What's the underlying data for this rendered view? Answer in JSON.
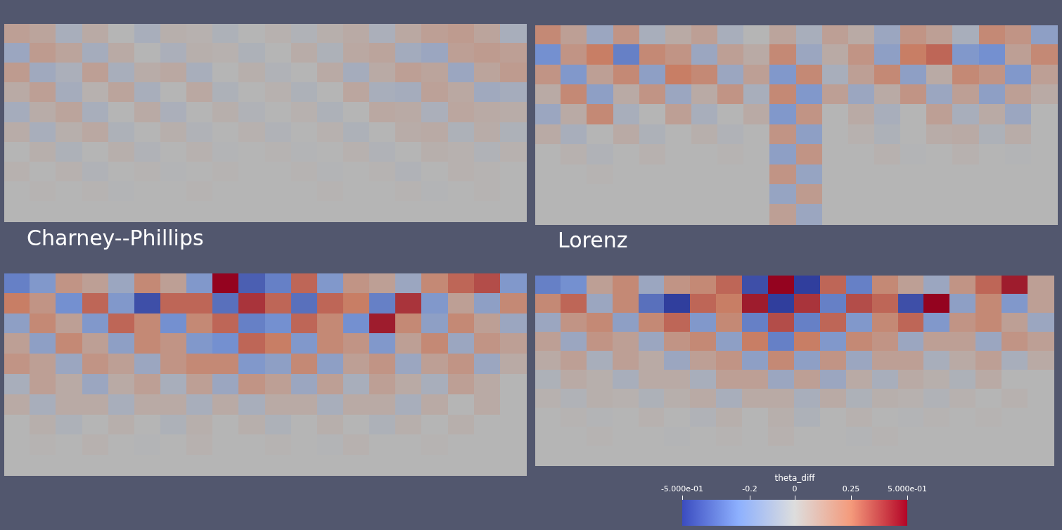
{
  "chart_data": [
    {
      "type": "heatmap",
      "tick_labels": false,
      "grid": false,
      "cells": [
        [
          0.1,
          0.08,
          -0.05,
          0.05,
          0.0,
          -0.05,
          0.03,
          0.02,
          -0.03,
          0.0,
          0.02,
          -0.02,
          0.03,
          0.05,
          -0.04,
          0.06,
          0.1,
          0.12,
          0.08,
          -0.05
        ],
        [
          -0.1,
          0.12,
          0.08,
          -0.06,
          0.05,
          0.0,
          -0.04,
          0.03,
          0.02,
          -0.03,
          0.0,
          0.04,
          -0.03,
          0.06,
          0.08,
          -0.07,
          -0.1,
          0.1,
          0.12,
          0.1
        ],
        [
          0.12,
          -0.08,
          -0.04,
          0.1,
          -0.05,
          0.04,
          0.06,
          -0.05,
          0.0,
          0.03,
          -0.02,
          0.0,
          0.05,
          -0.06,
          0.05,
          0.1,
          0.08,
          -0.1,
          0.08,
          0.12
        ],
        [
          0.05,
          0.1,
          -0.06,
          0.02,
          0.08,
          -0.05,
          0.0,
          0.06,
          -0.03,
          0.0,
          0.02,
          -0.03,
          0.0,
          0.07,
          -0.05,
          -0.06,
          0.09,
          0.06,
          -0.08,
          -0.06
        ],
        [
          -0.06,
          0.04,
          0.08,
          -0.05,
          0.0,
          0.05,
          -0.04,
          0.0,
          0.03,
          -0.02,
          0.0,
          0.02,
          -0.03,
          0.0,
          0.06,
          0.05,
          -0.04,
          0.07,
          0.05,
          0.04
        ],
        [
          0.04,
          -0.05,
          0.03,
          0.06,
          -0.03,
          0.0,
          0.03,
          -0.02,
          0.0,
          0.02,
          -0.02,
          0.0,
          0.02,
          -0.03,
          0.0,
          0.04,
          0.05,
          -0.03,
          0.04,
          -0.03
        ],
        [
          0.0,
          0.03,
          -0.03,
          0.0,
          0.03,
          -0.02,
          0.0,
          0.02,
          -0.01,
          0.0,
          0.01,
          -0.01,
          0.0,
          0.02,
          -0.02,
          0.0,
          0.03,
          0.02,
          -0.02,
          0.02
        ],
        [
          0.02,
          0.0,
          0.02,
          -0.02,
          0.0,
          0.01,
          -0.01,
          0.0,
          0.01,
          0.0,
          0.0,
          0.01,
          -0.01,
          0.0,
          0.01,
          -0.02,
          0.0,
          0.02,
          0.01,
          0.0
        ],
        [
          0.0,
          0.01,
          0.0,
          0.01,
          -0.01,
          0.0,
          0.0,
          0.01,
          0.0,
          0.0,
          0.0,
          0.0,
          0.01,
          0.0,
          0.0,
          0.01,
          -0.01,
          0.0,
          0.01,
          0.0
        ],
        [
          0,
          0,
          0,
          0,
          0,
          0,
          0,
          0,
          0,
          0,
          0,
          0,
          0,
          0,
          0,
          0,
          0,
          0,
          0,
          0
        ]
      ]
    },
    {
      "type": "heatmap",
      "tick_labels": false,
      "grid": false,
      "cells": [
        [
          0.2,
          0.1,
          -0.1,
          0.15,
          -0.05,
          0.05,
          0.1,
          -0.05,
          0.0,
          0.08,
          -0.05,
          0.1,
          0.05,
          -0.1,
          0.15,
          0.1,
          -0.05,
          0.2,
          0.15,
          -0.15
        ],
        [
          -0.25,
          0.15,
          0.25,
          -0.3,
          0.2,
          0.15,
          -0.1,
          0.1,
          0.05,
          0.2,
          -0.1,
          0.05,
          0.15,
          -0.15,
          0.25,
          0.3,
          -0.2,
          -0.25,
          0.1,
          0.2
        ],
        [
          0.15,
          -0.2,
          0.1,
          0.2,
          -0.15,
          0.25,
          0.2,
          -0.1,
          0.1,
          -0.2,
          0.2,
          -0.05,
          0.1,
          0.2,
          -0.15,
          0.05,
          0.2,
          0.15,
          -0.2,
          0.1
        ],
        [
          0.05,
          0.2,
          -0.15,
          0.05,
          0.15,
          -0.1,
          0.05,
          0.15,
          -0.05,
          0.2,
          -0.2,
          0.1,
          -0.1,
          0.05,
          0.15,
          -0.1,
          0.1,
          -0.15,
          0.1,
          0.05
        ],
        [
          -0.1,
          0.05,
          0.2,
          -0.05,
          0.0,
          0.1,
          -0.05,
          0.0,
          0.05,
          -0.2,
          0.15,
          0.0,
          0.05,
          -0.05,
          0.0,
          0.1,
          -0.05,
          0.05,
          -0.1,
          0.0
        ],
        [
          0.05,
          -0.05,
          0.0,
          0.05,
          -0.03,
          0.0,
          0.03,
          -0.02,
          0.0,
          0.15,
          -0.15,
          0.0,
          0.02,
          -0.03,
          0.0,
          0.04,
          0.05,
          -0.03,
          0.04,
          0.0
        ],
        [
          0.0,
          0.02,
          -0.02,
          0.0,
          0.02,
          0.0,
          0.0,
          0.01,
          0.0,
          -0.15,
          0.15,
          0.0,
          0.0,
          0.02,
          -0.01,
          0.0,
          0.02,
          0.0,
          -0.01,
          0.0
        ],
        [
          0,
          0,
          0.01,
          0,
          0,
          0,
          0,
          0,
          0,
          0.15,
          -0.12,
          0,
          0,
          0,
          0,
          0,
          0,
          0,
          0,
          0
        ],
        [
          0,
          0,
          0,
          0,
          0,
          0,
          0,
          0,
          0,
          -0.12,
          0.12,
          0,
          0,
          0,
          0,
          0,
          0,
          0,
          0,
          0
        ],
        [
          0,
          0,
          0,
          0,
          0,
          0,
          0,
          0,
          0,
          0.1,
          -0.1,
          0,
          0,
          0,
          0,
          0,
          0,
          0,
          0,
          0
        ]
      ]
    },
    {
      "type": "heatmap",
      "title": "Charney--Phillips",
      "tick_labels": false,
      "grid": false,
      "cells": [
        [
          -0.3,
          -0.2,
          0.15,
          0.1,
          -0.1,
          0.2,
          0.1,
          -0.2,
          0.5,
          -0.4,
          -0.3,
          0.3,
          -0.2,
          0.15,
          0.1,
          -0.1,
          0.2,
          0.3,
          0.35,
          -0.2
        ],
        [
          0.25,
          0.15,
          -0.25,
          0.3,
          -0.2,
          -0.45,
          0.3,
          0.3,
          -0.35,
          0.4,
          0.3,
          -0.35,
          0.3,
          0.25,
          -0.3,
          0.4,
          -0.2,
          0.1,
          -0.15,
          0.2
        ],
        [
          -0.15,
          0.2,
          0.1,
          -0.2,
          0.3,
          0.2,
          -0.25,
          0.2,
          0.3,
          -0.3,
          -0.25,
          0.3,
          0.2,
          -0.25,
          0.45,
          0.2,
          -0.15,
          0.2,
          0.1,
          -0.1
        ],
        [
          0.1,
          -0.15,
          0.2,
          0.1,
          -0.15,
          0.2,
          0.15,
          -0.2,
          -0.25,
          0.3,
          0.25,
          -0.2,
          0.2,
          0.15,
          -0.2,
          0.1,
          0.2,
          -0.1,
          0.15,
          0.1
        ],
        [
          0.15,
          0.1,
          -0.1,
          0.15,
          0.1,
          -0.1,
          0.15,
          0.2,
          0.2,
          -0.2,
          -0.15,
          0.2,
          -0.15,
          0.1,
          0.15,
          -0.1,
          0.1,
          0.15,
          -0.1,
          0.05
        ],
        [
          -0.05,
          0.1,
          0.05,
          -0.1,
          0.05,
          0.1,
          -0.05,
          0.1,
          -0.1,
          0.15,
          0.1,
          -0.1,
          0.1,
          -0.05,
          0.1,
          0.05,
          -0.05,
          0.1,
          0.05,
          0.0
        ],
        [
          0.05,
          -0.05,
          0.05,
          0.05,
          -0.05,
          0.05,
          0.05,
          -0.05,
          0.05,
          -0.05,
          0.05,
          0.05,
          -0.05,
          0.05,
          0.05,
          -0.05,
          0.05,
          0.0,
          0.05,
          0.0
        ],
        [
          0.0,
          0.03,
          -0.03,
          0.0,
          0.03,
          0.0,
          -0.03,
          0.03,
          0.0,
          0.03,
          -0.03,
          0.0,
          0.03,
          0.0,
          -0.03,
          0.03,
          0.0,
          0.03,
          0.0,
          0.0
        ],
        [
          0,
          0.01,
          0,
          0.02,
          0,
          -0.01,
          0,
          0.02,
          0,
          0,
          0.01,
          0,
          -0.01,
          0.02,
          0,
          0,
          0.01,
          0,
          0,
          0
        ],
        [
          0,
          0,
          0,
          0,
          0,
          0,
          0,
          0,
          0,
          0,
          0,
          0,
          0,
          0,
          0,
          0,
          0,
          0,
          0,
          0
        ]
      ]
    },
    {
      "type": "heatmap",
      "title": "Lorenz",
      "tick_labels": false,
      "grid": false,
      "cells": [
        [
          -0.3,
          -0.25,
          0.1,
          0.2,
          -0.1,
          0.15,
          0.2,
          0.3,
          -0.45,
          0.5,
          -0.5,
          0.3,
          -0.3,
          0.2,
          0.1,
          -0.1,
          0.15,
          0.3,
          0.45,
          0.1
        ],
        [
          0.2,
          0.3,
          -0.1,
          0.2,
          -0.35,
          -0.5,
          0.3,
          0.25,
          0.45,
          -0.5,
          0.4,
          -0.3,
          0.35,
          0.3,
          -0.45,
          0.5,
          -0.15,
          0.2,
          -0.2,
          0.1
        ],
        [
          -0.1,
          0.15,
          0.2,
          -0.15,
          0.2,
          0.3,
          -0.2,
          0.2,
          -0.3,
          0.35,
          -0.3,
          0.3,
          -0.2,
          0.2,
          0.3,
          -0.2,
          0.15,
          0.2,
          0.1,
          -0.1
        ],
        [
          0.1,
          -0.1,
          0.15,
          0.1,
          -0.1,
          0.15,
          0.2,
          -0.15,
          0.25,
          -0.3,
          0.25,
          -0.2,
          0.2,
          0.15,
          -0.1,
          0.1,
          0.1,
          -0.1,
          0.15,
          0.1
        ],
        [
          0.05,
          0.1,
          -0.05,
          0.1,
          0.05,
          -0.1,
          0.1,
          0.15,
          -0.15,
          0.2,
          -0.15,
          0.15,
          -0.1,
          0.1,
          0.1,
          -0.05,
          0.05,
          0.1,
          -0.05,
          0.05
        ],
        [
          -0.03,
          0.05,
          0.03,
          -0.05,
          0.05,
          0.05,
          -0.05,
          0.1,
          0.1,
          -0.1,
          0.1,
          -0.1,
          0.05,
          -0.05,
          0.05,
          0.03,
          -0.03,
          0.05,
          0.0,
          0.0
        ],
        [
          0.02,
          -0.02,
          0.03,
          0.02,
          -0.03,
          0.03,
          0.05,
          -0.05,
          0.05,
          0.05,
          -0.05,
          0.05,
          -0.03,
          0.03,
          0.02,
          -0.02,
          0.02,
          0.0,
          0.02,
          0.0
        ],
        [
          0,
          0.01,
          -0.01,
          0,
          0.02,
          0,
          -0.02,
          0.03,
          0,
          0.03,
          -0.03,
          0,
          0.02,
          0,
          -0.01,
          0.01,
          0,
          0.01,
          0,
          0
        ],
        [
          0,
          0,
          0.01,
          0,
          0,
          -0.01,
          0,
          0.01,
          0,
          0.02,
          0,
          0,
          -0.01,
          0.01,
          0,
          0,
          0,
          0,
          0,
          0
        ],
        [
          0,
          0,
          0,
          0,
          0,
          0,
          0,
          0,
          0,
          0,
          0,
          0,
          0,
          0,
          0,
          0,
          0,
          0,
          0,
          0
        ]
      ],
      "colorbar": {
        "label": "theta_diff",
        "range": [
          -0.5,
          0.5
        ],
        "ticks": [
          {
            "value": -0.5,
            "label": "-5.000e-01"
          },
          -0.2,
          0,
          0.25,
          {
            "value": 0.5,
            "label": "5.000e-01"
          }
        ]
      }
    }
  ]
}
